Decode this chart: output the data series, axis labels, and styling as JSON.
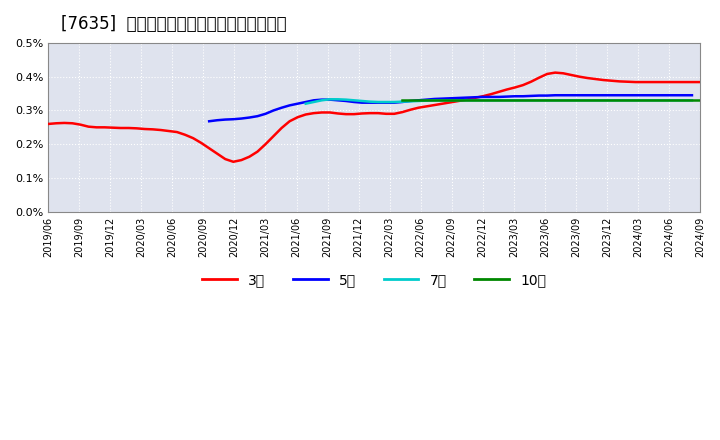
{
  "title": "[7635]  経常利益マージンの標準偏差の推移",
  "ylim": [
    0.0,
    0.005
  ],
  "yticks": [
    0.0,
    0.001,
    0.002,
    0.003,
    0.004,
    0.005
  ],
  "background_color": "#ffffff",
  "plot_bg_color": "#dfe3ee",
  "grid_color": "#ffffff",
  "x_labels": [
    "2019/06",
    "2019/09",
    "2019/12",
    "2020/03",
    "2020/06",
    "2020/09",
    "2020/12",
    "2021/03",
    "2021/06",
    "2021/09",
    "2021/12",
    "2022/03",
    "2022/06",
    "2022/09",
    "2022/12",
    "2023/03",
    "2023/06",
    "2023/09",
    "2023/12",
    "2024/03",
    "2024/06",
    "2024/09"
  ],
  "title_fontsize": 12,
  "legend_labels": [
    "3年",
    "5年",
    "7年",
    "10年"
  ],
  "legend_colors": [
    "#ff0000",
    "#0000ff",
    "#00cccc",
    "#008800"
  ],
  "series": {
    "3year": {
      "color": "#ff0000",
      "y": [
        0.0026,
        0.00262,
        0.00263,
        0.00262,
        0.00258,
        0.00252,
        0.0025,
        0.0025,
        0.00249,
        0.00248,
        0.00248,
        0.00247,
        0.00245,
        0.00244,
        0.00242,
        0.00239,
        0.00236,
        0.00228,
        0.00218,
        0.00204,
        0.00188,
        0.00172,
        0.00156,
        0.00148,
        0.00153,
        0.00163,
        0.00178,
        0.002,
        0.00224,
        0.00248,
        0.00268,
        0.0028,
        0.00288,
        0.00292,
        0.00294,
        0.00294,
        0.00291,
        0.00289,
        0.00289,
        0.00291,
        0.00292,
        0.00292,
        0.0029,
        0.0029,
        0.00295,
        0.00302,
        0.00308,
        0.00312,
        0.00316,
        0.0032,
        0.00324,
        0.00328,
        0.00332,
        0.00337,
        0.00342,
        0.00348,
        0.00355,
        0.00362,
        0.00368,
        0.00375,
        0.00385,
        0.00397,
        0.00408,
        0.00412,
        0.0041,
        0.00405,
        0.004,
        0.00396,
        0.00393,
        0.0039,
        0.00388,
        0.00386,
        0.00385,
        0.00384,
        0.00384,
        0.00384,
        0.00384,
        0.00384,
        0.00384,
        0.00384,
        0.00384,
        0.00384
      ]
    },
    "5year": {
      "color": "#0000ff",
      "y": [
        null,
        null,
        null,
        null,
        null,
        null,
        null,
        null,
        null,
        null,
        null,
        null,
        null,
        null,
        null,
        null,
        null,
        null,
        null,
        null,
        0.00268,
        0.00271,
        0.00273,
        0.00274,
        0.00276,
        0.00279,
        0.00283,
        0.0029,
        0.003,
        0.00308,
        0.00315,
        0.0032,
        0.00325,
        0.0033,
        0.00332,
        0.00332,
        0.0033,
        0.00328,
        0.00325,
        0.00323,
        0.00323,
        0.00323,
        0.00323,
        0.00323,
        0.00325,
        0.00328,
        0.0033,
        0.00332,
        0.00334,
        0.00335,
        0.00336,
        0.00337,
        0.00338,
        0.00339,
        0.0034,
        0.0034,
        0.0034,
        0.00341,
        0.00342,
        0.00342,
        0.00343,
        0.00344,
        0.00344,
        0.00345,
        0.00345,
        0.00345,
        0.00345,
        0.00345,
        0.00345,
        0.00345,
        0.00345,
        0.00345,
        0.00345,
        0.00345,
        0.00345,
        0.00345,
        0.00345,
        0.00345,
        0.00345,
        0.00345,
        0.00345
      ]
    },
    "7year": {
      "color": "#00cccc",
      "y": [
        null,
        null,
        null,
        null,
        null,
        null,
        null,
        null,
        null,
        null,
        null,
        null,
        null,
        null,
        null,
        null,
        null,
        null,
        null,
        null,
        null,
        null,
        null,
        null,
        null,
        null,
        null,
        null,
        null,
        null,
        null,
        null,
        0.0032,
        0.00325,
        0.0033,
        0.00333,
        0.00333,
        0.00332,
        0.0033,
        0.00328,
        0.00326,
        0.00325,
        0.00325,
        0.00325,
        0.00326,
        0.00327,
        0.00328,
        0.00329,
        0.0033,
        0.0033,
        0.0033,
        0.0033,
        0.0033,
        0.0033,
        0.0033,
        0.0033,
        0.0033,
        0.0033,
        0.0033,
        0.0033,
        0.0033,
        0.0033,
        0.0033,
        0.0033,
        0.0033,
        0.0033,
        0.0033,
        0.0033,
        0.0033,
        0.0033,
        0.0033,
        0.0033,
        0.0033,
        0.0033,
        0.0033,
        0.0033,
        0.0033,
        0.0033,
        0.0033,
        0.0033,
        0.0033
      ]
    },
    "10year": {
      "color": "#008800",
      "y": [
        null,
        null,
        null,
        null,
        null,
        null,
        null,
        null,
        null,
        null,
        null,
        null,
        null,
        null,
        null,
        null,
        null,
        null,
        null,
        null,
        null,
        null,
        null,
        null,
        null,
        null,
        null,
        null,
        null,
        null,
        null,
        null,
        null,
        null,
        null,
        null,
        null,
        null,
        null,
        null,
        null,
        null,
        null,
        null,
        0.0033,
        0.0033,
        0.0033,
        0.0033,
        0.0033,
        0.0033,
        0.0033,
        0.0033,
        0.0033,
        0.0033,
        0.0033,
        0.0033,
        0.0033,
        0.0033,
        0.0033,
        0.0033,
        0.0033,
        0.0033,
        0.0033,
        0.0033,
        0.0033,
        0.0033,
        0.0033,
        0.0033,
        0.0033,
        0.0033,
        0.0033,
        0.0033,
        0.0033,
        0.0033,
        0.0033,
        0.0033,
        0.0033,
        0.0033,
        0.0033,
        0.0033,
        0.0033,
        0.0033
      ]
    }
  }
}
